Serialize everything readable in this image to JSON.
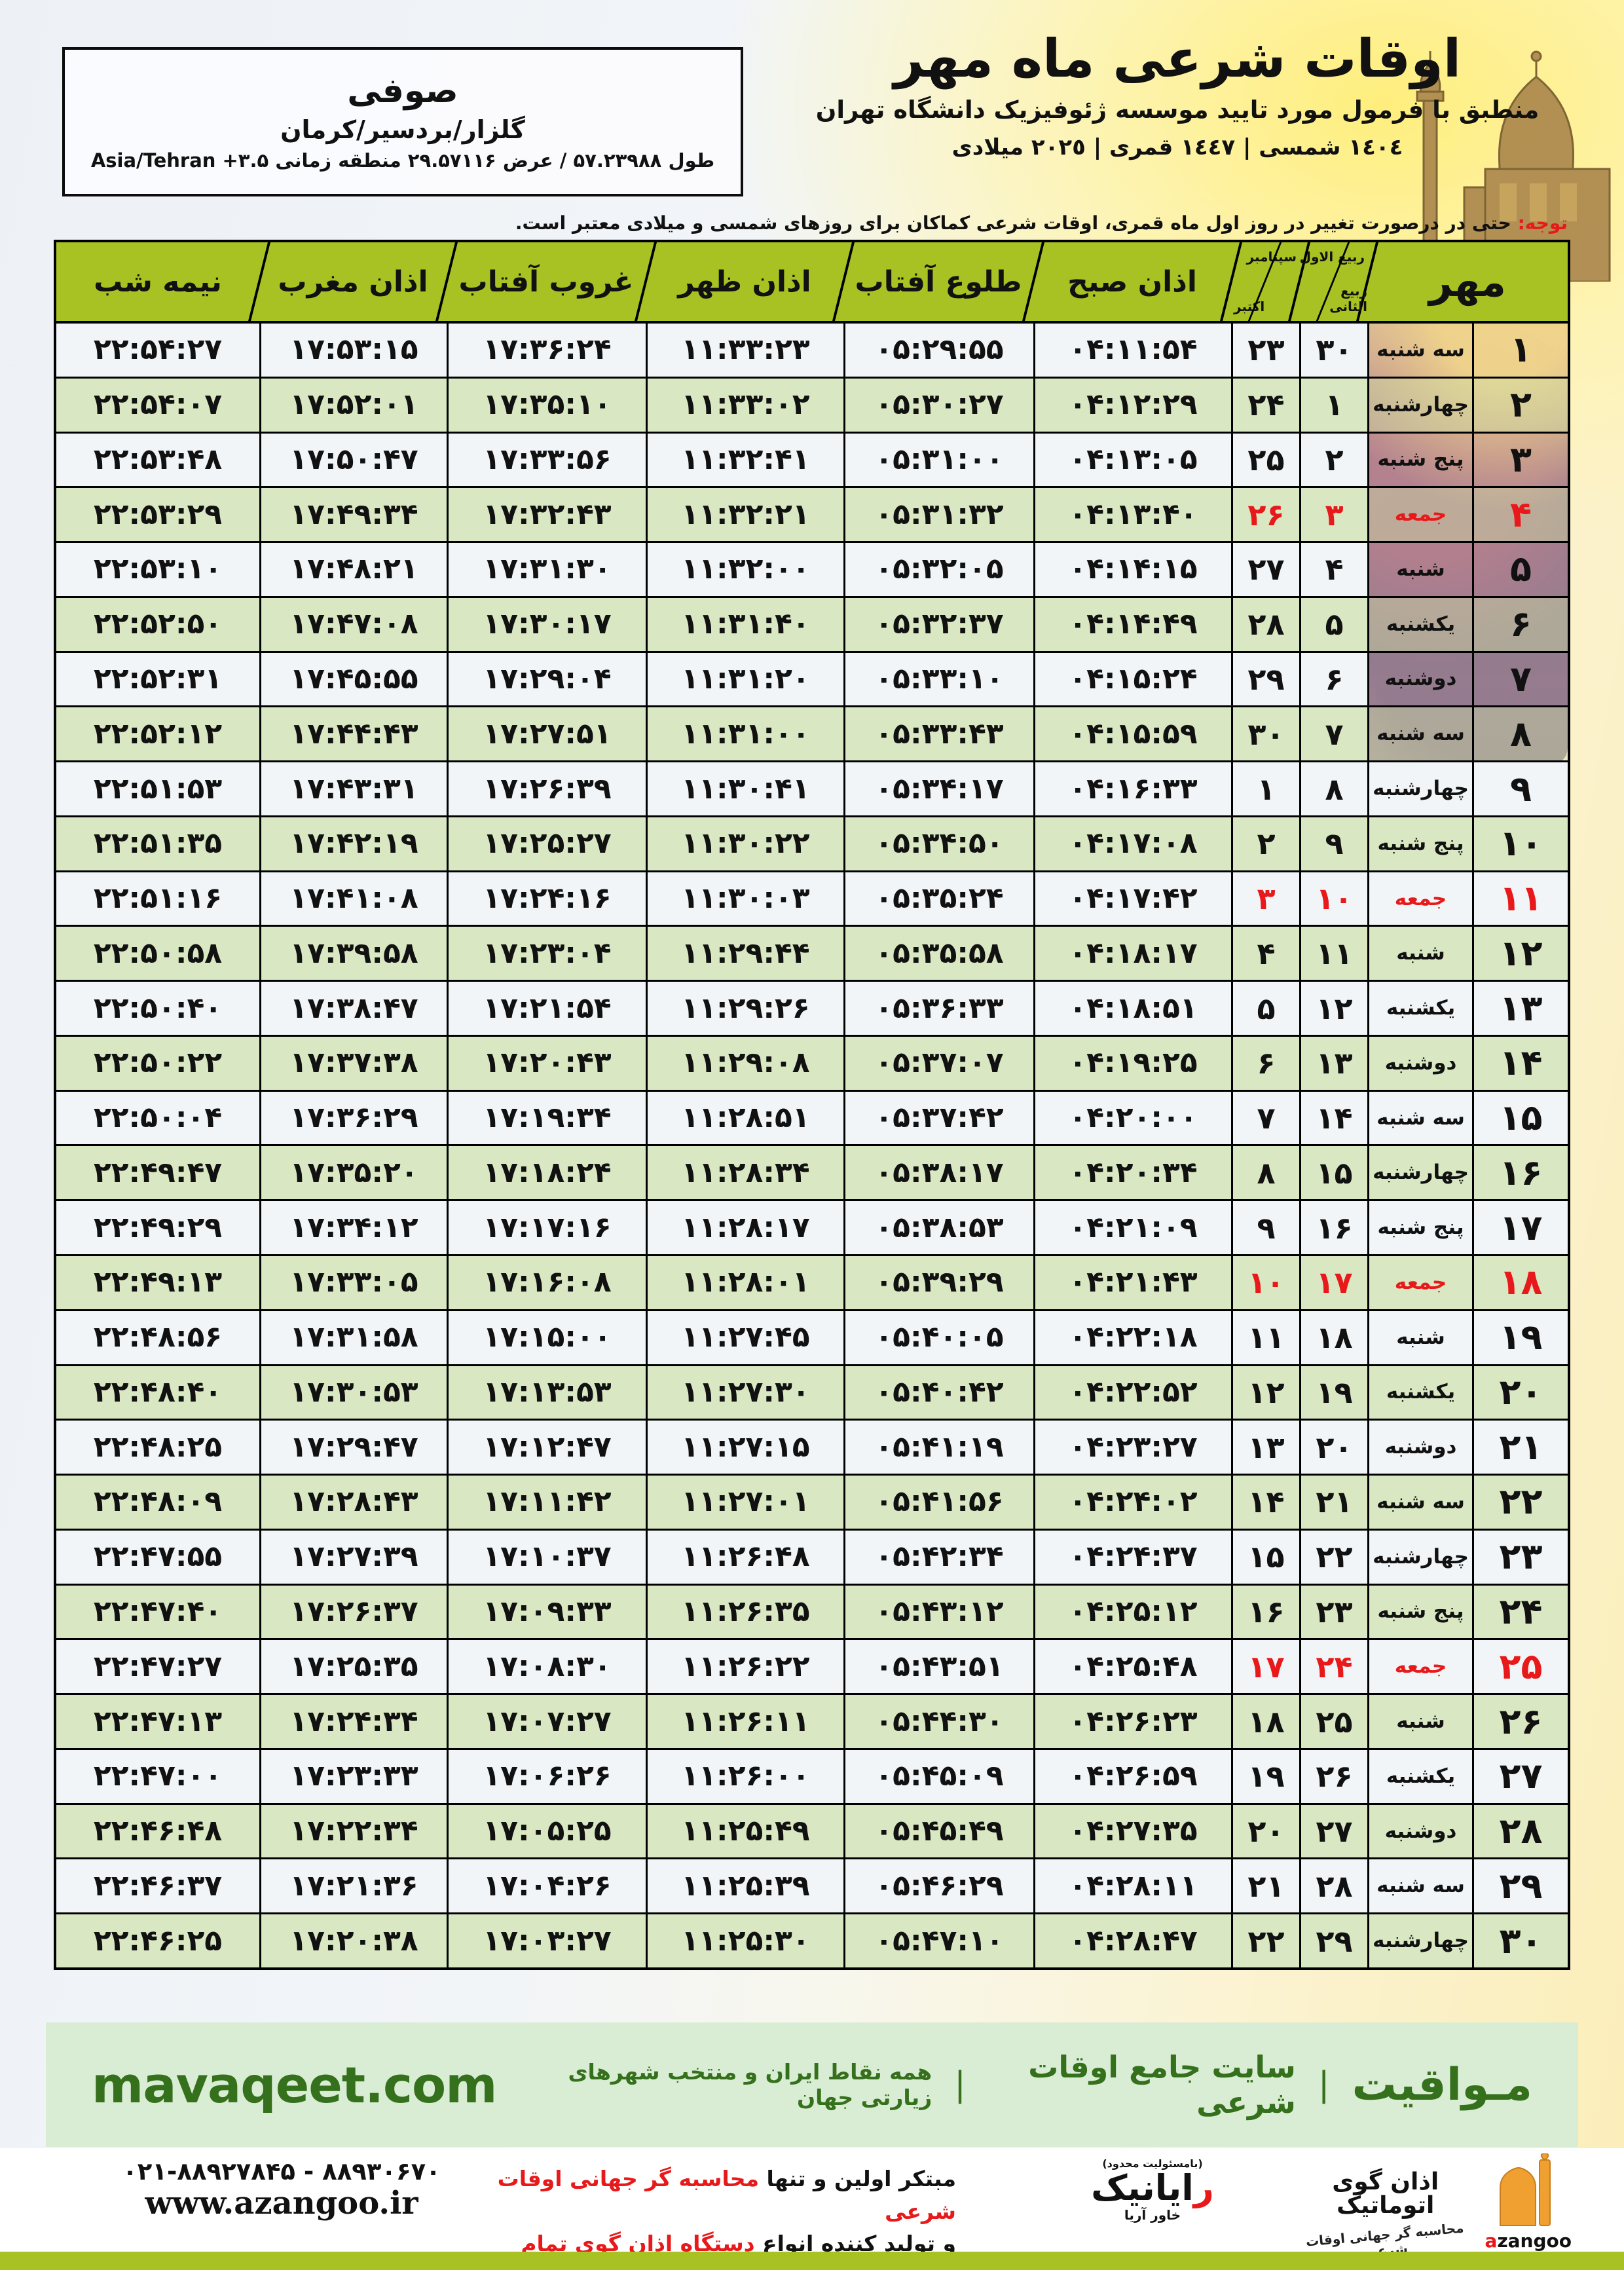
{
  "location": {
    "name": "صوفی",
    "region": "گلزار/بردسیر/کرمان",
    "coords": "طول ۵۷.۲۳۹۸۸ / عرض ۲۹.۵۷۱۱۶ منطقه زمانی Asia/Tehran +۳.۵"
  },
  "title": {
    "main": "اوقات شرعی ماه مهر",
    "subtitle": "منطبق با فرمول مورد تایید موسسه ژئوفیزیک دانشگاه تهران",
    "years": "١٤٠٤ شمسی | ١٤٤٧ قمری | ٢٠٢٥ میلادی"
  },
  "notice": {
    "label": "توجه:",
    "text": " حتی در درصورت تغییر در روز اول ماه قمری، اوقات شرعی کماکان برای روزهای شمسی و میلادی معتبر است."
  },
  "table": {
    "headers": {
      "month": "مهر",
      "hijri_top": "ربیع الاول",
      "hijri_bottom": "ربیع الثانی",
      "greg_top": "سپتامبر",
      "greg_bottom": "اکتبر",
      "fajr": "اذان صبح",
      "sunrise": "طلوع آفتاب",
      "dhuhr": "اذان ظهر",
      "sunset": "غروب آفتاب",
      "maghrib": "اذان مغرب",
      "midnight": "نیمه شب"
    },
    "rows": [
      {
        "d": "۱",
        "w": "سه شنبه",
        "h": "۳۰",
        "g": "۲۳",
        "sobh": "۰۴:۱۱:۵۴",
        "tolu": "۰۵:۲۹:۵۵",
        "zohr": "۱۱:۳۳:۲۳",
        "ghorub": "۱۷:۳۶:۲۴",
        "maghreb": "۱۷:۵۳:۱۵",
        "nimeshab": "۲۲:۵۴:۲۷",
        "f": false
      },
      {
        "d": "۲",
        "w": "چهارشنبه",
        "h": "۱",
        "g": "۲۴",
        "sobh": "۰۴:۱۲:۲۹",
        "tolu": "۰۵:۳۰:۲۷",
        "zohr": "۱۱:۳۳:۰۲",
        "ghorub": "۱۷:۳۵:۱۰",
        "maghreb": "۱۷:۵۲:۰۱",
        "nimeshab": "۲۲:۵۴:۰۷",
        "f": false
      },
      {
        "d": "۳",
        "w": "پنج شنبه",
        "h": "۲",
        "g": "۲۵",
        "sobh": "۰۴:۱۳:۰۵",
        "tolu": "۰۵:۳۱:۰۰",
        "zohr": "۱۱:۳۲:۴۱",
        "ghorub": "۱۷:۳۳:۵۶",
        "maghreb": "۱۷:۵۰:۴۷",
        "nimeshab": "۲۲:۵۳:۴۸",
        "f": false
      },
      {
        "d": "۴",
        "w": "جمعه",
        "h": "۳",
        "g": "۲۶",
        "sobh": "۰۴:۱۳:۴۰",
        "tolu": "۰۵:۳۱:۳۲",
        "zohr": "۱۱:۳۲:۲۱",
        "ghorub": "۱۷:۳۲:۴۳",
        "maghreb": "۱۷:۴۹:۳۴",
        "nimeshab": "۲۲:۵۳:۲۹",
        "f": true
      },
      {
        "d": "۵",
        "w": "شنبه",
        "h": "۴",
        "g": "۲۷",
        "sobh": "۰۴:۱۴:۱۵",
        "tolu": "۰۵:۳۲:۰۵",
        "zohr": "۱۱:۳۲:۰۰",
        "ghorub": "۱۷:۳۱:۳۰",
        "maghreb": "۱۷:۴۸:۲۱",
        "nimeshab": "۲۲:۵۳:۱۰",
        "f": false
      },
      {
        "d": "۶",
        "w": "یکشنبه",
        "h": "۵",
        "g": "۲۸",
        "sobh": "۰۴:۱۴:۴۹",
        "tolu": "۰۵:۳۲:۳۷",
        "zohr": "۱۱:۳۱:۴۰",
        "ghorub": "۱۷:۳۰:۱۷",
        "maghreb": "۱۷:۴۷:۰۸",
        "nimeshab": "۲۲:۵۲:۵۰",
        "f": false
      },
      {
        "d": "۷",
        "w": "دوشنبه",
        "h": "۶",
        "g": "۲۹",
        "sobh": "۰۴:۱۵:۲۴",
        "tolu": "۰۵:۳۳:۱۰",
        "zohr": "۱۱:۳۱:۲۰",
        "ghorub": "۱۷:۲۹:۰۴",
        "maghreb": "۱۷:۴۵:۵۵",
        "nimeshab": "۲۲:۵۲:۳۱",
        "f": false
      },
      {
        "d": "۸",
        "w": "سه شنبه",
        "h": "۷",
        "g": "۳۰",
        "sobh": "۰۴:۱۵:۵۹",
        "tolu": "۰۵:۳۳:۴۳",
        "zohr": "۱۱:۳۱:۰۰",
        "ghorub": "۱۷:۲۷:۵۱",
        "maghreb": "۱۷:۴۴:۴۳",
        "nimeshab": "۲۲:۵۲:۱۲",
        "f": false
      },
      {
        "d": "۹",
        "w": "چهارشنبه",
        "h": "۸",
        "g": "۱",
        "sobh": "۰۴:۱۶:۳۳",
        "tolu": "۰۵:۳۴:۱۷",
        "zohr": "۱۱:۳۰:۴۱",
        "ghorub": "۱۷:۲۶:۳۹",
        "maghreb": "۱۷:۴۳:۳۱",
        "nimeshab": "۲۲:۵۱:۵۳",
        "f": false
      },
      {
        "d": "۱۰",
        "w": "پنج شنبه",
        "h": "۹",
        "g": "۲",
        "sobh": "۰۴:۱۷:۰۸",
        "tolu": "۰۵:۳۴:۵۰",
        "zohr": "۱۱:۳۰:۲۲",
        "ghorub": "۱۷:۲۵:۲۷",
        "maghreb": "۱۷:۴۲:۱۹",
        "nimeshab": "۲۲:۵۱:۳۵",
        "f": false
      },
      {
        "d": "۱۱",
        "w": "جمعه",
        "h": "۱۰",
        "g": "۳",
        "sobh": "۰۴:۱۷:۴۲",
        "tolu": "۰۵:۳۵:۲۴",
        "zohr": "۱۱:۳۰:۰۳",
        "ghorub": "۱۷:۲۴:۱۶",
        "maghreb": "۱۷:۴۱:۰۸",
        "nimeshab": "۲۲:۵۱:۱۶",
        "f": true
      },
      {
        "d": "۱۲",
        "w": "شنبه",
        "h": "۱۱",
        "g": "۴",
        "sobh": "۰۴:۱۸:۱۷",
        "tolu": "۰۵:۳۵:۵۸",
        "zohr": "۱۱:۲۹:۴۴",
        "ghorub": "۱۷:۲۳:۰۴",
        "maghreb": "۱۷:۳۹:۵۸",
        "nimeshab": "۲۲:۵۰:۵۸",
        "f": false
      },
      {
        "d": "۱۳",
        "w": "یکشنبه",
        "h": "۱۲",
        "g": "۵",
        "sobh": "۰۴:۱۸:۵۱",
        "tolu": "۰۵:۳۶:۳۳",
        "zohr": "۱۱:۲۹:۲۶",
        "ghorub": "۱۷:۲۱:۵۴",
        "maghreb": "۱۷:۳۸:۴۷",
        "nimeshab": "۲۲:۵۰:۴۰",
        "f": false
      },
      {
        "d": "۱۴",
        "w": "دوشنبه",
        "h": "۱۳",
        "g": "۶",
        "sobh": "۰۴:۱۹:۲۵",
        "tolu": "۰۵:۳۷:۰۷",
        "zohr": "۱۱:۲۹:۰۸",
        "ghorub": "۱۷:۲۰:۴۳",
        "maghreb": "۱۷:۳۷:۳۸",
        "nimeshab": "۲۲:۵۰:۲۲",
        "f": false
      },
      {
        "d": "۱۵",
        "w": "سه شنبه",
        "h": "۱۴",
        "g": "۷",
        "sobh": "۰۴:۲۰:۰۰",
        "tolu": "۰۵:۳۷:۴۲",
        "zohr": "۱۱:۲۸:۵۱",
        "ghorub": "۱۷:۱۹:۳۴",
        "maghreb": "۱۷:۳۶:۲۹",
        "nimeshab": "۲۲:۵۰:۰۴",
        "f": false
      },
      {
        "d": "۱۶",
        "w": "چهارشنبه",
        "h": "۱۵",
        "g": "۸",
        "sobh": "۰۴:۲۰:۳۴",
        "tolu": "۰۵:۳۸:۱۷",
        "zohr": "۱۱:۲۸:۳۴",
        "ghorub": "۱۷:۱۸:۲۴",
        "maghreb": "۱۷:۳۵:۲۰",
        "nimeshab": "۲۲:۴۹:۴۷",
        "f": false
      },
      {
        "d": "۱۷",
        "w": "پنج شنبه",
        "h": "۱۶",
        "g": "۹",
        "sobh": "۰۴:۲۱:۰۹",
        "tolu": "۰۵:۳۸:۵۳",
        "zohr": "۱۱:۲۸:۱۷",
        "ghorub": "۱۷:۱۷:۱۶",
        "maghreb": "۱۷:۳۴:۱۲",
        "nimeshab": "۲۲:۴۹:۲۹",
        "f": false
      },
      {
        "d": "۱۸",
        "w": "جمعه",
        "h": "۱۷",
        "g": "۱۰",
        "sobh": "۰۴:۲۱:۴۳",
        "tolu": "۰۵:۳۹:۲۹",
        "zohr": "۱۱:۲۸:۰۱",
        "ghorub": "۱۷:۱۶:۰۸",
        "maghreb": "۱۷:۳۳:۰۵",
        "nimeshab": "۲۲:۴۹:۱۳",
        "f": true
      },
      {
        "d": "۱۹",
        "w": "شنبه",
        "h": "۱۸",
        "g": "۱۱",
        "sobh": "۰۴:۲۲:۱۸",
        "tolu": "۰۵:۴۰:۰۵",
        "zohr": "۱۱:۲۷:۴۵",
        "ghorub": "۱۷:۱۵:۰۰",
        "maghreb": "۱۷:۳۱:۵۸",
        "nimeshab": "۲۲:۴۸:۵۶",
        "f": false
      },
      {
        "d": "۲۰",
        "w": "یکشنبه",
        "h": "۱۹",
        "g": "۱۲",
        "sobh": "۰۴:۲۲:۵۲",
        "tolu": "۰۵:۴۰:۴۲",
        "zohr": "۱۱:۲۷:۳۰",
        "ghorub": "۱۷:۱۳:۵۳",
        "maghreb": "۱۷:۳۰:۵۳",
        "nimeshab": "۲۲:۴۸:۴۰",
        "f": false
      },
      {
        "d": "۲۱",
        "w": "دوشنبه",
        "h": "۲۰",
        "g": "۱۳",
        "sobh": "۰۴:۲۳:۲۷",
        "tolu": "۰۵:۴۱:۱۹",
        "zohr": "۱۱:۲۷:۱۵",
        "ghorub": "۱۷:۱۲:۴۷",
        "maghreb": "۱۷:۲۹:۴۷",
        "nimeshab": "۲۲:۴۸:۲۵",
        "f": false
      },
      {
        "d": "۲۲",
        "w": "سه شنبه",
        "h": "۲۱",
        "g": "۱۴",
        "sobh": "۰۴:۲۴:۰۲",
        "tolu": "۰۵:۴۱:۵۶",
        "zohr": "۱۱:۲۷:۰۱",
        "ghorub": "۱۷:۱۱:۴۲",
        "maghreb": "۱۷:۲۸:۴۳",
        "nimeshab": "۲۲:۴۸:۰۹",
        "f": false
      },
      {
        "d": "۲۳",
        "w": "چهارشنبه",
        "h": "۲۲",
        "g": "۱۵",
        "sobh": "۰۴:۲۴:۳۷",
        "tolu": "۰۵:۴۲:۳۴",
        "zohr": "۱۱:۲۶:۴۸",
        "ghorub": "۱۷:۱۰:۳۷",
        "maghreb": "۱۷:۲۷:۳۹",
        "nimeshab": "۲۲:۴۷:۵۵",
        "f": false
      },
      {
        "d": "۲۴",
        "w": "پنج شنبه",
        "h": "۲۳",
        "g": "۱۶",
        "sobh": "۰۴:۲۵:۱۲",
        "tolu": "۰۵:۴۳:۱۲",
        "zohr": "۱۱:۲۶:۳۵",
        "ghorub": "۱۷:۰۹:۳۳",
        "maghreb": "۱۷:۲۶:۳۷",
        "nimeshab": "۲۲:۴۷:۴۰",
        "f": false
      },
      {
        "d": "۲۵",
        "w": "جمعه",
        "h": "۲۴",
        "g": "۱۷",
        "sobh": "۰۴:۲۵:۴۸",
        "tolu": "۰۵:۴۳:۵۱",
        "zohr": "۱۱:۲۶:۲۲",
        "ghorub": "۱۷:۰۸:۳۰",
        "maghreb": "۱۷:۲۵:۳۵",
        "nimeshab": "۲۲:۴۷:۲۷",
        "f": true
      },
      {
        "d": "۲۶",
        "w": "شنبه",
        "h": "۲۵",
        "g": "۱۸",
        "sobh": "۰۴:۲۶:۲۳",
        "tolu": "۰۵:۴۴:۳۰",
        "zohr": "۱۱:۲۶:۱۱",
        "ghorub": "۱۷:۰۷:۲۷",
        "maghreb": "۱۷:۲۴:۳۴",
        "nimeshab": "۲۲:۴۷:۱۳",
        "f": false
      },
      {
        "d": "۲۷",
        "w": "یکشنبه",
        "h": "۲۶",
        "g": "۱۹",
        "sobh": "۰۴:۲۶:۵۹",
        "tolu": "۰۵:۴۵:۰۹",
        "zohr": "۱۱:۲۶:۰۰",
        "ghorub": "۱۷:۰۶:۲۶",
        "maghreb": "۱۷:۲۳:۳۳",
        "nimeshab": "۲۲:۴۷:۰۰",
        "f": false
      },
      {
        "d": "۲۸",
        "w": "دوشنبه",
        "h": "۲۷",
        "g": "۲۰",
        "sobh": "۰۴:۲۷:۳۵",
        "tolu": "۰۵:۴۵:۴۹",
        "zohr": "۱۱:۲۵:۴۹",
        "ghorub": "۱۷:۰۵:۲۵",
        "maghreb": "۱۷:۲۲:۳۴",
        "nimeshab": "۲۲:۴۶:۴۸",
        "f": false
      },
      {
        "d": "۲۹",
        "w": "سه شنبه",
        "h": "۲۸",
        "g": "۲۱",
        "sobh": "۰۴:۲۸:۱۱",
        "tolu": "۰۵:۴۶:۲۹",
        "zohr": "۱۱:۲۵:۳۹",
        "ghorub": "۱۷:۰۴:۲۶",
        "maghreb": "۱۷:۲۱:۳۶",
        "nimeshab": "۲۲:۴۶:۳۷",
        "f": false
      },
      {
        "d": "۳۰",
        "w": "چهارشنبه",
        "h": "۲۹",
        "g": "۲۲",
        "sobh": "۰۴:۲۸:۴۷",
        "tolu": "۰۵:۴۷:۱۰",
        "zohr": "۱۱:۲۵:۳۰",
        "ghorub": "۱۷:۰۳:۲۷",
        "maghreb": "۱۷:۲۰:۳۸",
        "nimeshab": "۲۲:۴۶:۲۵",
        "f": false
      }
    ]
  },
  "band": {
    "name_fa": "مـواقیت",
    "sep": "|",
    "tagline1": "سایت جامع اوقات شرعی",
    "tagline2": "همه نقاط ایران و منتخب شهرهای زیارتی جهان",
    "site_en": "mavaqeet.com"
  },
  "strip": {
    "phones": "۰۲۱-۸۸۹۲۷۸۴۵ - ۸۸۹۳۰۶۷۰",
    "website": "www.azangoo.ir",
    "line1_black": "مبتکر اولین و تنها ",
    "line1_red": "محاسبه گر جهانی اوقات شرعی",
    "line2_black": "و تولید کننده انواع ",
    "line2_red": "دستگاه اذان گوی تمام خودکار ماهواره ای",
    "rayanik": {
      "note": "(بامسئولیت محدود)",
      "initial": "ر",
      "rest": "ایانیک",
      "sub": "خاور آریا"
    },
    "azangoo": {
      "title_fa": "اذان گوی اتوماتیک",
      "brand_a": "a",
      "brand_rest": "zangoo",
      "tagline": "محاسبه گر جهانی اوقات شرعی"
    }
  },
  "colors": {
    "header_green": "#a7c222",
    "row_green": "#d9e8c2",
    "row_white": "#f1f5f8",
    "friday_red": "#e8191a",
    "band_bg": "#d9ecd4",
    "band_text": "#35701c",
    "bar_green": "#a7c222"
  }
}
